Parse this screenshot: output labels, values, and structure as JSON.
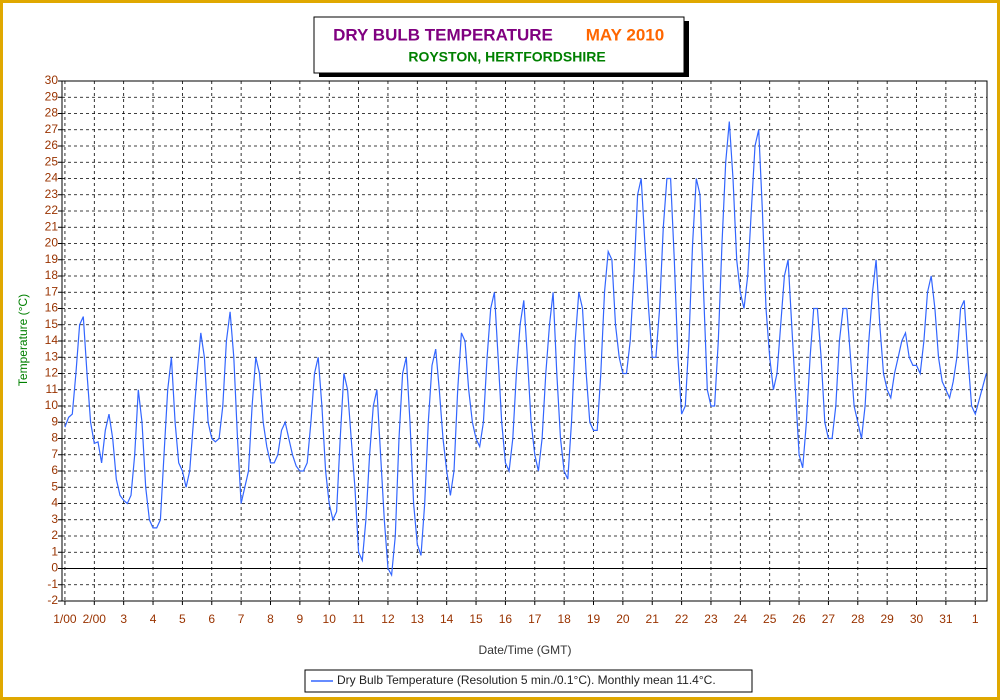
{
  "chart_data": {
    "type": "line",
    "title": "DRY BULB TEMPERATURE",
    "period": "MAY 2010",
    "subtitle": "ROYSTON, HERTFORDSHIRE",
    "x_label": "Date/Time (GMT)",
    "y_label": "Temperature (°C)",
    "xlim": [
      0.9,
      32.4
    ],
    "xticks": [
      {
        "value": 1,
        "label": "1/00"
      },
      {
        "value": 2,
        "label": "2/00"
      },
      3,
      4,
      5,
      6,
      7,
      8,
      9,
      10,
      11,
      12,
      13,
      14,
      15,
      16,
      17,
      18,
      19,
      20,
      21,
      22,
      23,
      24,
      25,
      26,
      27,
      28,
      29,
      30,
      31,
      {
        "value": 32,
        "label": "1"
      }
    ],
    "ylim": [
      -2,
      30
    ],
    "yticks": [
      -2,
      -1,
      0,
      1,
      2,
      3,
      4,
      5,
      6,
      7,
      8,
      9,
      10,
      11,
      12,
      13,
      14,
      15,
      16,
      17,
      18,
      19,
      20,
      21,
      22,
      23,
      24,
      25,
      26,
      27,
      28,
      29,
      30
    ],
    "grid": true,
    "x": [
      1,
      1.125,
      1.25,
      1.375,
      1.5,
      1.625,
      1.75,
      1.875,
      2,
      2.125,
      2.25,
      2.375,
      2.5,
      2.625,
      2.75,
      2.875,
      3,
      3.125,
      3.25,
      3.375,
      3.5,
      3.625,
      3.75,
      3.875,
      4,
      4.125,
      4.25,
      4.375,
      4.5,
      4.625,
      4.75,
      4.875,
      5,
      5.125,
      5.25,
      5.375,
      5.5,
      5.625,
      5.75,
      5.875,
      6,
      6.125,
      6.25,
      6.375,
      6.5,
      6.625,
      6.75,
      6.875,
      7,
      7.125,
      7.25,
      7.375,
      7.5,
      7.625,
      7.75,
      7.875,
      8,
      8.125,
      8.25,
      8.375,
      8.5,
      8.625,
      8.75,
      8.875,
      9,
      9.125,
      9.25,
      9.375,
      9.5,
      9.625,
      9.75,
      9.875,
      10,
      10.125,
      10.25,
      10.375,
      10.5,
      10.625,
      10.75,
      10.875,
      11,
      11.125,
      11.25,
      11.375,
      11.5,
      11.625,
      11.75,
      11.875,
      12,
      12.125,
      12.25,
      12.375,
      12.5,
      12.625,
      12.75,
      12.875,
      13,
      13.125,
      13.25,
      13.375,
      13.5,
      13.625,
      13.75,
      13.875,
      14,
      14.125,
      14.25,
      14.375,
      14.5,
      14.625,
      14.75,
      14.875,
      15,
      15.125,
      15.25,
      15.375,
      15.5,
      15.625,
      15.75,
      15.875,
      16,
      16.125,
      16.25,
      16.375,
      16.5,
      16.625,
      16.75,
      16.875,
      17,
      17.125,
      17.25,
      17.375,
      17.5,
      17.625,
      17.75,
      17.875,
      18,
      18.125,
      18.25,
      18.375,
      18.5,
      18.625,
      18.75,
      18.875,
      19,
      19.125,
      19.25,
      19.375,
      19.5,
      19.625,
      19.75,
      19.875,
      20,
      20.125,
      20.25,
      20.375,
      20.5,
      20.625,
      20.75,
      20.875,
      21,
      21.125,
      21.25,
      21.375,
      21.5,
      21.625,
      21.75,
      21.875,
      22,
      22.125,
      22.25,
      22.375,
      22.5,
      22.625,
      22.75,
      22.875,
      23,
      23.125,
      23.25,
      23.375,
      23.5,
      23.625,
      23.75,
      23.875,
      24,
      24.125,
      24.25,
      24.375,
      24.5,
      24.625,
      24.75,
      24.875,
      25,
      25.125,
      25.25,
      25.375,
      25.5,
      25.625,
      25.75,
      25.875,
      26,
      26.125,
      26.25,
      26.375,
      26.5,
      26.625,
      26.75,
      26.875,
      27,
      27.125,
      27.25,
      27.375,
      27.5,
      27.625,
      27.75,
      27.875,
      28,
      28.125,
      28.25,
      28.375,
      28.5,
      28.625,
      28.75,
      28.875,
      29,
      29.125,
      29.25,
      29.375,
      29.5,
      29.625,
      29.75,
      29.875,
      30,
      30.125,
      30.25,
      30.375,
      30.5,
      30.625,
      30.75,
      30.875,
      31,
      31.125,
      31.25,
      31.375,
      31.5,
      31.625,
      31.75,
      31.875,
      32,
      32.375
    ],
    "series": [
      {
        "name": "Dry Bulb Temperature (Resolution 5 min./0.1°C). Monthly mean 11.4°C.",
        "color": "#3366ff",
        "values": [
          8.7,
          9.3,
          9.5,
          12,
          15,
          15.5,
          12,
          9,
          7.7,
          7.8,
          6.5,
          8.5,
          9.5,
          8,
          5.5,
          4.5,
          4.2,
          4,
          4.5,
          7,
          11,
          9,
          5,
          3,
          2.5,
          2.5,
          3,
          7,
          11,
          13,
          9,
          6.5,
          6,
          5,
          6,
          9,
          12,
          14.5,
          13,
          9,
          8,
          7.8,
          8,
          10,
          14,
          15.8,
          13,
          8,
          4,
          5,
          6,
          10,
          13,
          12,
          9,
          7.5,
          6.5,
          6.5,
          7,
          8.5,
          9,
          8,
          7,
          6.3,
          6,
          6,
          6.5,
          9,
          12,
          13,
          10,
          6,
          4,
          3,
          3.5,
          8,
          12,
          11,
          8,
          5,
          1,
          0.5,
          3,
          7,
          10,
          11,
          7,
          3,
          0,
          -0.4,
          2,
          8,
          12,
          13,
          9,
          4,
          1.5,
          0.8,
          4,
          9,
          12.5,
          13.5,
          11,
          8,
          6,
          4.5,
          6,
          11,
          14.5,
          14,
          11,
          9,
          8,
          7.5,
          9,
          13,
          16,
          17,
          13,
          9,
          6.5,
          6,
          8,
          12,
          15,
          16.5,
          13,
          9,
          7,
          6,
          8,
          12,
          15,
          17,
          12,
          8,
          6,
          5.5,
          9,
          14,
          17,
          16,
          12,
          9,
          8.5,
          8.5,
          12,
          17,
          19.5,
          19,
          15,
          13,
          12,
          12,
          14,
          18,
          23,
          24,
          20,
          16,
          13,
          13,
          16,
          21,
          24,
          24,
          19,
          13,
          9.5,
          10,
          14,
          20,
          24,
          23,
          17,
          11,
          10,
          10,
          14,
          20,
          25,
          27.5,
          24,
          19,
          17,
          16,
          18,
          22,
          26,
          27,
          22,
          16,
          13,
          11,
          12,
          15,
          18,
          19,
          15,
          11,
          7,
          6.2,
          9,
          13,
          16,
          16,
          13,
          9,
          8,
          8,
          10,
          14,
          16,
          16,
          13,
          10,
          9,
          8,
          10,
          14,
          17,
          19,
          15,
          12,
          11,
          10.5,
          12,
          13,
          14,
          14.5,
          13,
          12.5,
          12.5,
          12,
          14,
          17,
          18,
          16,
          13,
          11.5,
          11,
          10.5,
          11.5,
          13,
          16,
          16.5,
          13,
          10,
          9.5,
          12
        ]
      }
    ]
  }
}
